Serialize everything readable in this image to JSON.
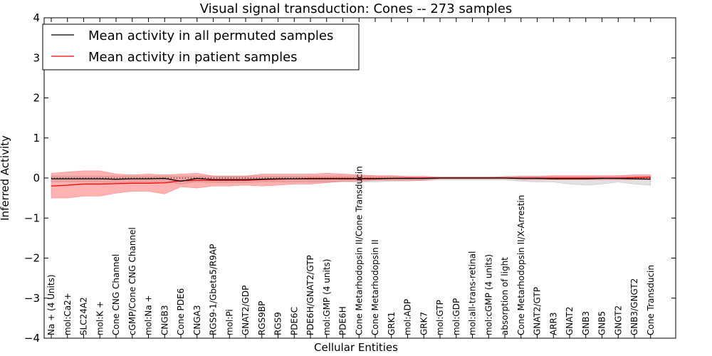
{
  "chart_data": {
    "type": "line",
    "title": "Visual signal transduction: Cones -- 273 samples",
    "xlabel": "Cellular Entities",
    "ylabel": "Inferred Activity",
    "ylim": [
      -4,
      4
    ],
    "yticks": [
      4,
      3,
      2,
      1,
      0,
      -1,
      -2,
      -3,
      -4
    ],
    "ytick_labels": [
      "4",
      "3",
      "2",
      "1",
      "0",
      "−1",
      "−2",
      "−3",
      "−4"
    ],
    "grid": false,
    "legend_position": "top-left",
    "categories": [
      "Na + (4 Units)",
      "mol:Ca2+",
      "SLC24A2",
      "mol:K +",
      "Cone CNG Channel",
      "cGMP/Cone CNG Channel",
      "mol:Na +",
      "CNGB3",
      "Cone PDE6",
      "CNGA3",
      "RGS9-1/Gbeta5/R9AP",
      "mol:Pi",
      "GNAT2/GDP",
      "RGS9BP",
      "RGS9",
      "PDE6C",
      "PDE6H/GNAT2/GTP",
      "mol:GMP (4 units)",
      "PDE6H",
      "Cone Metarhodopsin II/Cone Transducin",
      "Cone Metarhodopsin II",
      "GRK1",
      "mol:ADP",
      "GRK7",
      "mol:GTP",
      "mol:GDP",
      "mol:all-trans-retinal",
      "mol:cGMP (4 units)",
      "absorption of light",
      "Cone Metarhodopsin II/X-Arrestin",
      "GNAT2/GTP",
      "ARR3",
      "GNAT2",
      "GNB3",
      "GNB5",
      "GNGT2",
      "GNB3/GNGT2",
      "Cone Transducin"
    ],
    "series": [
      {
        "name": "Mean activity in all permuted samples",
        "color": "#000000",
        "values": [
          -0.02,
          -0.02,
          -0.02,
          -0.02,
          -0.03,
          -0.02,
          -0.02,
          -0.01,
          -0.08,
          -0.01,
          -0.04,
          -0.04,
          -0.04,
          -0.03,
          -0.02,
          -0.02,
          -0.02,
          -0.02,
          -0.02,
          -0.02,
          -0.02,
          -0.01,
          -0.01,
          -0.01,
          0,
          0,
          0,
          0,
          0,
          -0.01,
          -0.01,
          -0.02,
          -0.02,
          -0.02,
          -0.01,
          -0.01,
          -0.02,
          -0.03
        ],
        "band_lower": [
          -0.1,
          -0.1,
          -0.1,
          -0.1,
          -0.12,
          -0.1,
          -0.1,
          -0.1,
          -0.15,
          -0.1,
          -0.12,
          -0.12,
          -0.12,
          -0.1,
          -0.1,
          -0.1,
          -0.1,
          -0.1,
          -0.1,
          -0.1,
          -0.1,
          -0.08,
          -0.08,
          -0.06,
          -0.05,
          -0.05,
          -0.05,
          -0.05,
          -0.05,
          -0.08,
          -0.1,
          -0.1,
          -0.15,
          -0.18,
          -0.15,
          -0.1,
          -0.15,
          -0.18
        ],
        "band_upper": [
          0.05,
          0.05,
          0.05,
          0.05,
          0.05,
          0.05,
          0.05,
          0.05,
          0.05,
          0.05,
          0.05,
          0.05,
          0.05,
          0.05,
          0.05,
          0.05,
          0.05,
          0.05,
          0.05,
          0.05,
          0.05,
          0.05,
          0.04,
          0.04,
          0.03,
          0.03,
          0.03,
          0.03,
          0.03,
          0.05,
          0.05,
          0.05,
          0.05,
          0.05,
          0.05,
          0.05,
          0.05,
          0.05
        ],
        "band_color": "#aaaaaa"
      },
      {
        "name": "Mean activity in patient samples",
        "color": "#ff0000",
        "values": [
          -0.2,
          -0.18,
          -0.15,
          -0.15,
          -0.14,
          -0.13,
          -0.13,
          -0.12,
          -0.07,
          -0.06,
          -0.06,
          -0.06,
          -0.06,
          -0.04,
          -0.03,
          -0.02,
          -0.01,
          -0.01,
          -0.01,
          -0.01,
          -0.01,
          -0.01,
          0,
          0,
          0,
          0,
          0,
          0,
          0,
          0,
          0,
          0,
          0,
          0,
          0,
          0,
          0.01,
          0.02
        ],
        "band_lower": [
          -0.5,
          -0.5,
          -0.45,
          -0.45,
          -0.38,
          -0.33,
          -0.33,
          -0.4,
          -0.22,
          -0.25,
          -0.2,
          -0.2,
          -0.18,
          -0.2,
          -0.18,
          -0.15,
          -0.15,
          -0.12,
          -0.08,
          -0.08,
          -0.06,
          -0.06,
          -0.06,
          -0.06,
          -0.02,
          -0.02,
          -0.02,
          -0.02,
          -0.02,
          -0.04,
          -0.04,
          -0.04,
          -0.04,
          -0.04,
          -0.04,
          -0.04,
          -0.04,
          -0.04
        ],
        "band_upper": [
          0.12,
          0.15,
          0.18,
          0.18,
          0.1,
          0.08,
          0.1,
          0.08,
          0.1,
          0.12,
          0.05,
          0.05,
          0.05,
          0.1,
          0.1,
          0.1,
          0.1,
          0.12,
          0.1,
          0.08,
          0.06,
          0.06,
          0.04,
          0.04,
          0.02,
          0.02,
          0.02,
          0.02,
          0.04,
          0.04,
          0.04,
          0.06,
          0.06,
          0.06,
          0.06,
          0.06,
          0.08,
          0.08
        ],
        "band_color": "#ff5555"
      }
    ],
    "reference_line": {
      "y": 0,
      "style": "dotted",
      "color": "#000000"
    }
  }
}
